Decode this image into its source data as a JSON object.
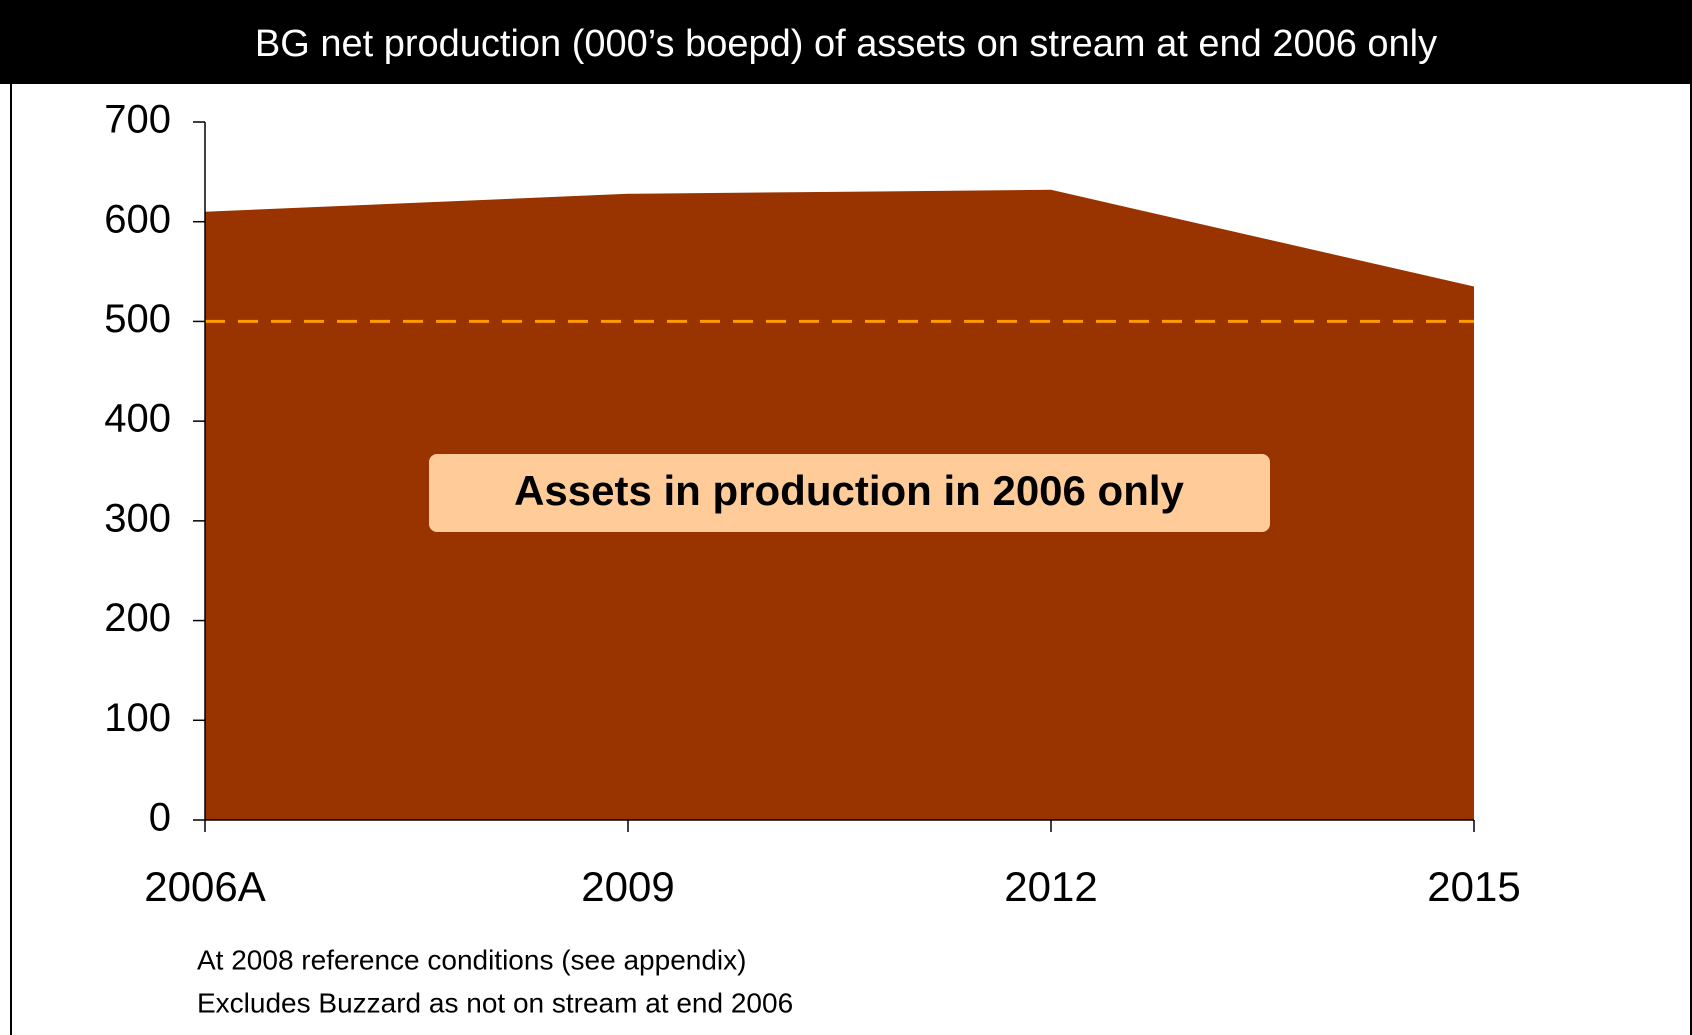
{
  "chart_data": {
    "type": "area",
    "title": "BG net production (000’s boepd) of assets on stream at end 2006 only",
    "categories": [
      "2006A",
      "2009",
      "2012",
      "2015"
    ],
    "series": [
      {
        "name": "Assets in production in 2006 only",
        "color": "#993300",
        "values": [
          610,
          628,
          632,
          535
        ]
      }
    ],
    "ylim": [
      0,
      700
    ],
    "yticks": [
      0,
      100,
      200,
      300,
      400,
      500,
      600,
      700
    ],
    "reference_line": {
      "value": 500,
      "color": "#ff9900"
    },
    "annotation_color": "#ffcc99",
    "footnotes": [
      "At 2008 reference conditions (see appendix)",
      "Excludes Buzzard as not on stream at end 2006"
    ]
  }
}
